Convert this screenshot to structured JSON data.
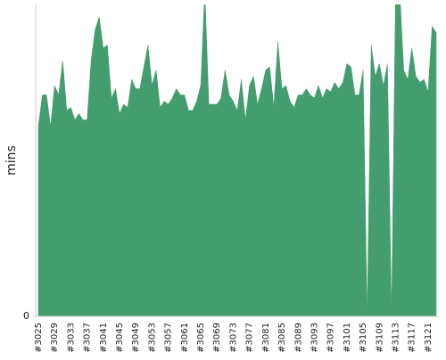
{
  "chart_data": {
    "type": "area",
    "y_label": "mins",
    "categories": [
      "#3025",
      null,
      null,
      null,
      "#3029",
      null,
      null,
      null,
      "#3033",
      null,
      null,
      null,
      "#3037",
      null,
      null,
      null,
      "#3041",
      null,
      null,
      null,
      "#3045",
      null,
      null,
      null,
      "#3049",
      null,
      null,
      null,
      "#3053",
      null,
      null,
      null,
      "#3057",
      null,
      null,
      null,
      "#3061",
      null,
      null,
      null,
      "#3065",
      null,
      null,
      null,
      "#3069",
      null,
      null,
      null,
      "#3073",
      null,
      null,
      null,
      "#3077",
      null,
      null,
      null,
      "#3081",
      null,
      null,
      null,
      "#3085",
      null,
      null,
      null,
      "#3089",
      null,
      null,
      null,
      "#3093",
      null,
      null,
      null,
      "#3097",
      null,
      null,
      null,
      "#3101",
      null,
      null,
      null,
      "#3105",
      null,
      null,
      null,
      "#3109",
      null,
      null,
      null,
      "#3113",
      null,
      null,
      null,
      "#3117",
      null,
      null,
      null,
      "#3121",
      null,
      null
    ],
    "values": [
      6.1,
      7.1,
      7.1,
      6.1,
      7.4,
      7.1,
      8.2,
      6.6,
      6.7,
      6.3,
      6.5,
      6.3,
      6.3,
      8.2,
      9.2,
      9.6,
      8.6,
      8.7,
      7.0,
      7.3,
      6.5,
      6.8,
      6.7,
      7.6,
      7.3,
      7.3,
      8.0,
      8.7,
      7.4,
      7.9,
      6.7,
      6.9,
      6.8,
      7.0,
      7.3,
      7.1,
      7.1,
      6.6,
      6.6,
      6.9,
      7.4,
      10.5,
      6.8,
      6.8,
      6.8,
      7.0,
      7.9,
      7.1,
      6.9,
      6.6,
      7.6,
      6.3,
      7.4,
      7.7,
      6.8,
      7.3,
      7.9,
      8.0,
      6.7,
      8.8,
      7.3,
      7.4,
      6.9,
      6.7,
      7.1,
      7.1,
      7.3,
      7.1,
      7.0,
      7.4,
      7.0,
      7.3,
      7.2,
      7.5,
      7.3,
      7.5,
      8.1,
      8.0,
      7.1,
      7.1,
      7.9,
      0,
      8.7,
      7.7,
      8.1,
      7.4,
      8.1,
      0,
      10.5,
      10.5,
      7.9,
      7.6,
      8.6,
      7.7,
      7.5,
      7.6,
      7.2,
      9.3,
      9.1
    ],
    "color": "#449d6e",
    "ylim": [
      0,
      10
    ],
    "yticks": [
      0
    ]
  }
}
